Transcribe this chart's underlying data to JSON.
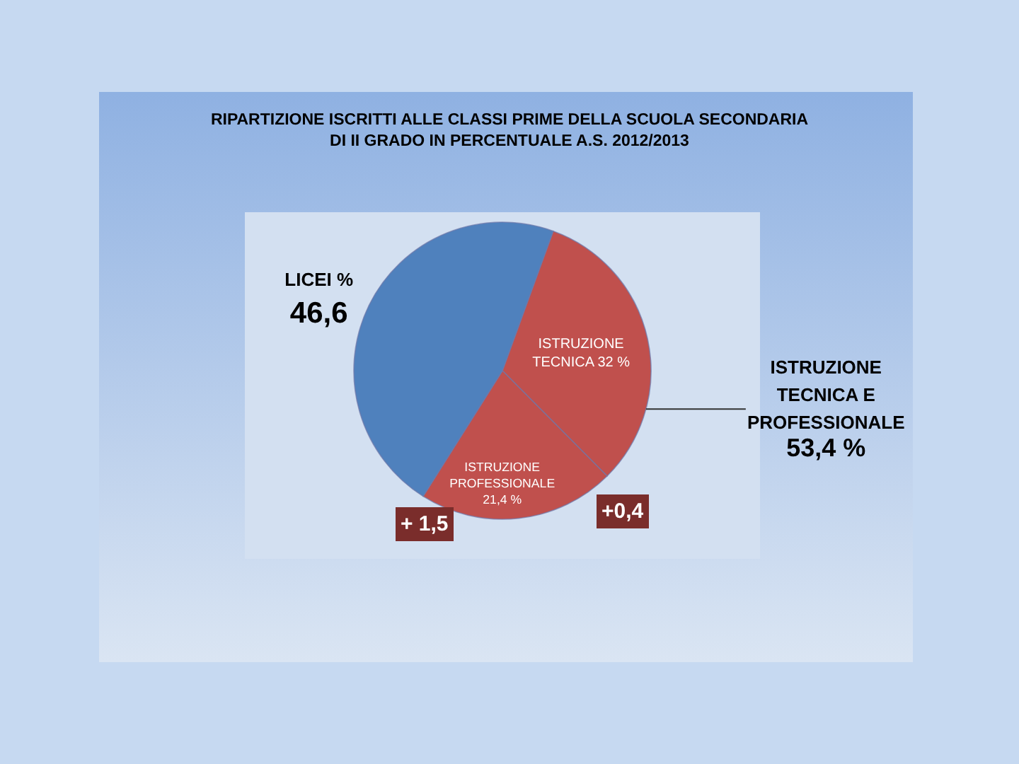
{
  "chart_data": {
    "type": "pie",
    "title": "RIPARTIZIONE ISCRITTI ALLE CLASSI PRIME DELLA SCUOLA SECONDARIA DI II GRADO IN PERCENTUALE A.S. 2012/2013",
    "categories": [
      "ISTRUZIONE TECNICA",
      "ISTRUZIONE PROFESSIONALE",
      "LICEI %"
    ],
    "values": [
      32,
      21.4,
      46.6
    ],
    "value_labels": [
      "32 %",
      "21,4 %",
      "46,6"
    ],
    "colors": [
      "#c0504d",
      "#c0504d",
      "#4f81bd"
    ],
    "annotations": [
      "ISTRUZIONE TECNICA E PROFESSIONALE 53,4 %",
      "+ 1,5",
      "+0,4"
    ]
  }
}
